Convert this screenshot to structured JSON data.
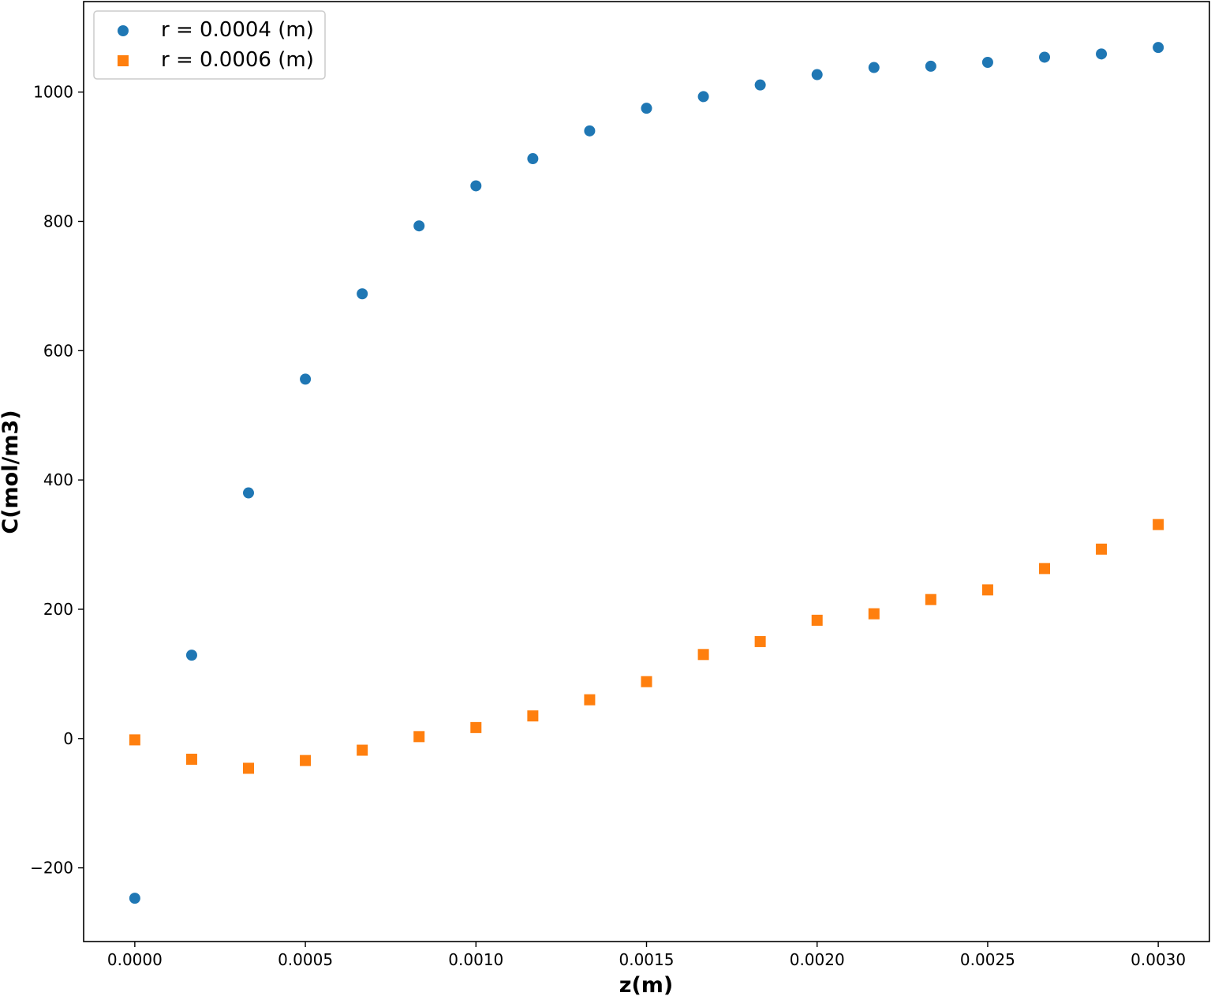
{
  "chart_data": {
    "type": "scatter",
    "title": "",
    "xlabel": "z(m)",
    "ylabel": "C(mol/m3)",
    "xlim": [
      -0.00015,
      0.00315
    ],
    "ylim": [
      -314,
      1140
    ],
    "xticks": [
      0.0,
      0.0005,
      0.001,
      0.0015,
      0.002,
      0.0025,
      0.003
    ],
    "xtick_labels": [
      "0.0000",
      "0.0005",
      "0.0010",
      "0.0015",
      "0.0020",
      "0.0025",
      "0.0030"
    ],
    "yticks": [
      -200,
      0,
      200,
      400,
      600,
      800,
      1000
    ],
    "ytick_labels": [
      "−200",
      "0",
      "200",
      "400",
      "600",
      "800",
      "1000"
    ],
    "grid": false,
    "legend_position": "top-left",
    "x": [
      0.0,
      0.0001667,
      0.0003333,
      0.0005,
      0.0006667,
      0.0008333,
      0.001,
      0.0011667,
      0.0013333,
      0.0015,
      0.0016667,
      0.0018333,
      0.002,
      0.0021667,
      0.0023333,
      0.0025,
      0.0026667,
      0.0028333,
      0.003
    ],
    "series": [
      {
        "name": "r = 0.0004 (m)",
        "marker": "circle",
        "color": "#1f77b4",
        "values": [
          -247,
          129,
          380,
          556,
          688,
          793,
          855,
          897,
          940,
          975,
          993,
          1011,
          1027,
          1038,
          1040,
          1046,
          1054,
          1059,
          1069
        ]
      },
      {
        "name": "r = 0.0006 (m)",
        "marker": "square",
        "color": "#ff7f0e",
        "values": [
          -2,
          -32,
          -46,
          -34,
          -18,
          3,
          17,
          35,
          60,
          88,
          130,
          150,
          183,
          193,
          215,
          230,
          263,
          293,
          331
        ]
      }
    ]
  }
}
